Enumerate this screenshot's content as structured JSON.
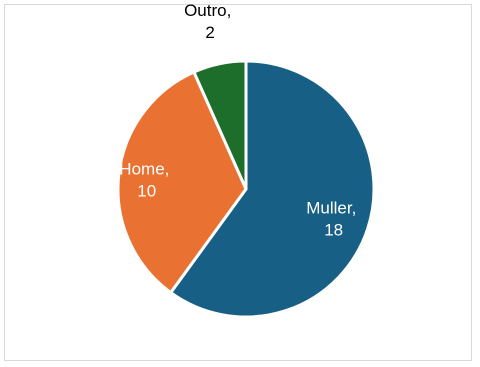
{
  "chart_data": {
    "type": "pie",
    "title": "",
    "slices": [
      {
        "label": "Muller",
        "value": 18,
        "color": "#185F86"
      },
      {
        "label": "Home",
        "value": 10,
        "color": "#E97132"
      },
      {
        "label": "Outro",
        "value": 2,
        "color": "#1E6E2B"
      }
    ],
    "data_labels": [
      {
        "line1": "Muller,",
        "line2": "18",
        "color": "#ffffff"
      },
      {
        "line1": "Home,",
        "line2": "10",
        "color": "#ffffff"
      },
      {
        "line1": "Outro,",
        "line2": "2",
        "color": "#000000"
      }
    ],
    "start_angle_deg": 0,
    "direction": "clockwise"
  }
}
